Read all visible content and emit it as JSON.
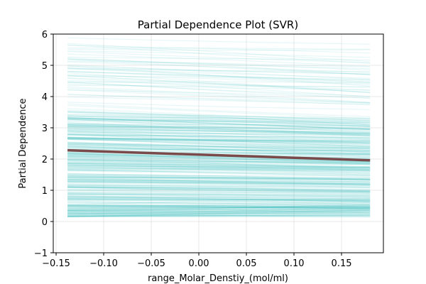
{
  "chart_data": {
    "type": "line",
    "title": "Partial Dependence Plot (SVR)",
    "xlabel": "range_Molar_Denstiy_(mol/ml)",
    "ylabel": "Partial Dependence",
    "xlim": [
      -0.153,
      0.194
    ],
    "ylim": [
      -1,
      6
    ],
    "x_ticks": [
      -0.15,
      -0.1,
      -0.05,
      0.0,
      0.05,
      0.1,
      0.15
    ],
    "x_tick_labels": [
      "−0.15",
      "−0.10",
      "−0.05",
      "0.00",
      "0.05",
      "0.10",
      "0.15"
    ],
    "y_ticks": [
      -1,
      0,
      1,
      2,
      3,
      4,
      5,
      6
    ],
    "y_tick_labels": [
      "−1",
      "0",
      "1",
      "2",
      "3",
      "4",
      "5",
      "6"
    ],
    "grid": true,
    "x_range": [
      -0.138,
      0.18
    ],
    "ice_lines": {
      "color": "#3bbfbf",
      "count": 420,
      "start_range": [
        0.15,
        5.95
      ],
      "end_range": [
        0.1,
        5.6
      ]
    },
    "series": [
      {
        "color": "#7a4a4a",
        "x": [
          -0.138,
          0.18
        ],
        "y": [
          2.28,
          1.96
        ]
      }
    ]
  }
}
